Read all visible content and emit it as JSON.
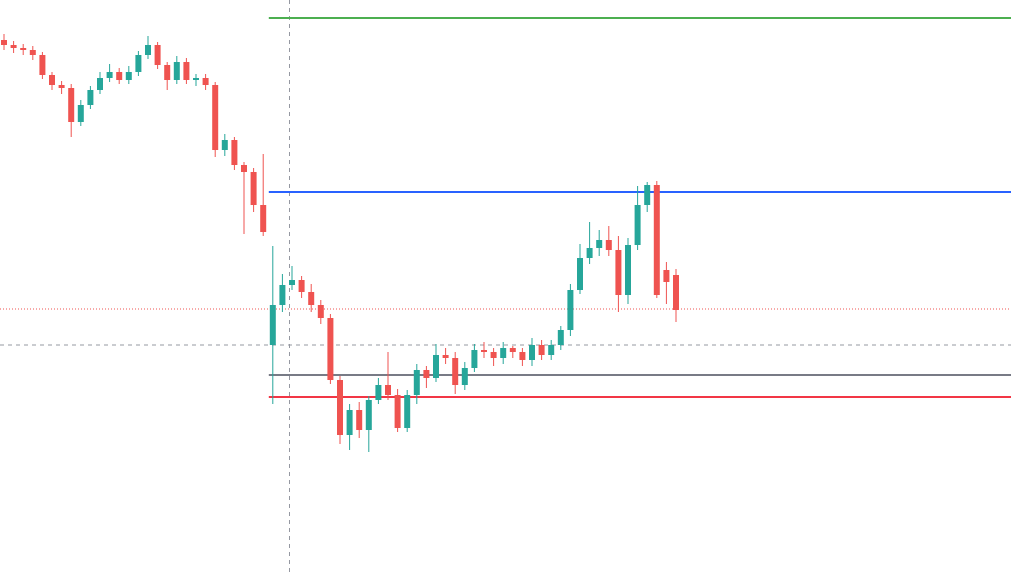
{
  "chart_data": {
    "type": "candlestick",
    "ylim": [
      0,
      574
    ],
    "up_color": "#26a69a",
    "down_color": "#ef5350",
    "open": [
      534,
      529,
      526,
      524,
      519,
      499,
      489,
      486,
      452,
      469,
      484,
      496,
      502,
      494,
      502,
      519,
      529,
      509,
      494,
      512,
      494,
      496,
      489,
      424,
      434,
      409,
      402,
      369,
      229,
      269,
      289,
      294,
      282,
      269,
      256,
      194,
      139,
      164,
      144,
      174,
      189,
      179,
      146,
      179,
      204,
      196,
      219,
      216,
      189,
      206,
      224,
      222,
      216,
      226,
      222,
      214,
      229,
      219,
      229,
      244,
      284,
      316,
      326,
      334,
      324,
      279,
      329,
      369,
      389,
      304,
      299
    ],
    "high": [
      540,
      533,
      530,
      528,
      522,
      502,
      493,
      490,
      474,
      488,
      502,
      510,
      506,
      508,
      523,
      538,
      532,
      512,
      518,
      516,
      500,
      500,
      492,
      440,
      437,
      412,
      406,
      420,
      328,
      300,
      308,
      298,
      290,
      274,
      260,
      198,
      170,
      172,
      178,
      196,
      222,
      185,
      184,
      210,
      208,
      230,
      226,
      222,
      212,
      230,
      232,
      226,
      232,
      228,
      226,
      236,
      234,
      234,
      248,
      290,
      330,
      352,
      344,
      348,
      338,
      336,
      388,
      392,
      393,
      312,
      305
    ],
    "low": [
      524,
      521,
      519,
      514,
      495,
      484,
      480,
      437,
      448,
      465,
      480,
      492,
      490,
      490,
      498,
      515,
      505,
      484,
      490,
      490,
      488,
      484,
      417,
      418,
      404,
      340,
      362,
      338,
      170,
      262,
      284,
      276,
      262,
      250,
      190,
      130,
      124,
      136,
      122,
      170,
      174,
      142,
      142,
      170,
      186,
      192,
      210,
      180,
      184,
      202,
      216,
      208,
      210,
      216,
      208,
      208,
      214,
      214,
      224,
      238,
      280,
      310,
      318,
      318,
      262,
      270,
      324,
      362,
      276,
      270,
      252
    ],
    "close": [
      529,
      526,
      524,
      519,
      499,
      489,
      486,
      452,
      469,
      484,
      496,
      502,
      494,
      502,
      519,
      529,
      509,
      494,
      512,
      494,
      496,
      489,
      424,
      434,
      409,
      402,
      369,
      342,
      269,
      289,
      294,
      282,
      269,
      256,
      194,
      139,
      164,
      144,
      174,
      189,
      179,
      146,
      179,
      204,
      196,
      219,
      216,
      189,
      206,
      224,
      222,
      216,
      226,
      222,
      214,
      229,
      219,
      229,
      244,
      284,
      316,
      326,
      334,
      324,
      279,
      329,
      369,
      389,
      279,
      292,
      264
    ],
    "levels": [
      {
        "value": 556,
        "color": "#4caf50"
      },
      {
        "value": 382,
        "color": "#2962ff"
      },
      {
        "value": 199,
        "color": "#787b86"
      },
      {
        "value": 177,
        "color": "#f23645"
      }
    ],
    "price_line": {
      "value": 265,
      "color": "#ef5350"
    },
    "crosshair_value": 229
  }
}
